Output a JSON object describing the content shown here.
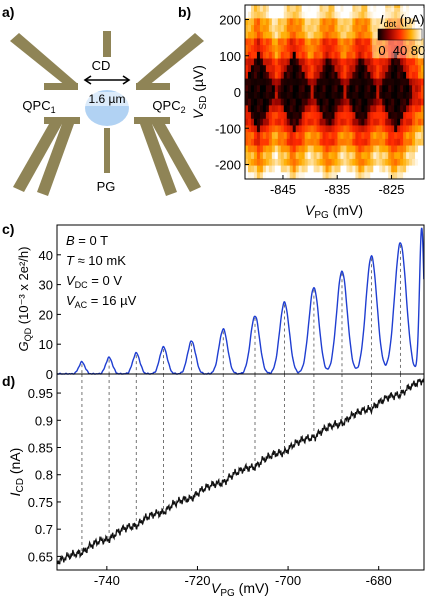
{
  "figure": {
    "panels": {
      "a": {
        "label": "a)",
        "cd_label": "CD",
        "qpc1_label": "QPC",
        "qpc1_sub": "1",
        "qpc2_label": "QPC",
        "qpc2_sub": "2",
        "pg_label": "PG",
        "scale_label": "1.6 µm"
      },
      "b": {
        "label": "b)"
      },
      "c": {
        "label": "c)"
      },
      "d": {
        "label": "d)"
      }
    },
    "colors": {
      "gate": "#8f8456",
      "dot": "#a9cdf2",
      "trace_c": "#1f3ed1",
      "trace_d": "#111111",
      "dash": "#666666"
    }
  },
  "chart_data": [
    {
      "id": "b",
      "type": "heatmap",
      "xlabel": "V",
      "xlabel_sub": "PG",
      "xlabel_unit": " (mV)",
      "ylabel": "V",
      "ylabel_sub": "SD",
      "ylabel_unit": " (µV)",
      "x_ticks": [
        "-845",
        "-835",
        "-825"
      ],
      "x_tick_values": [
        -845,
        -835,
        -825
      ],
      "y_ticks": [
        "200",
        "100",
        "0",
        "-100",
        "-200"
      ],
      "y_tick_values": [
        200,
        100,
        0,
        -100,
        -200
      ],
      "xlim": [
        -852,
        -819
      ],
      "ylim": [
        -240,
        240
      ],
      "colorbar": {
        "title": "I",
        "title_sub": "dot",
        "title_unit": " (pA)",
        "labels": [
          "0",
          "40",
          "80"
        ],
        "range": [
          0,
          80
        ]
      },
      "diamond_centers_mV": [
        -849.5,
        -843.0,
        -836.6,
        -830.5,
        -824.3
      ],
      "diamond_half_height_uV": 105
    },
    {
      "id": "c",
      "type": "line",
      "ylabel": "G",
      "ylabel_sub": "QD",
      "ylabel_unit": " (10⁻³ x 2e²/h)",
      "y_ticks": [
        "0",
        "10",
        "20",
        "30",
        "40"
      ],
      "y_tick_values": [
        0,
        10,
        20,
        30,
        40
      ],
      "ylim": [
        0,
        50
      ],
      "xlim": [
        -751,
        -670
      ],
      "annotations": [
        {
          "text": "B",
          "rest": " = 0 T"
        },
        {
          "text": "T",
          "rest": " ≈ 10 mK"
        },
        {
          "text": "V",
          "sub": "DC",
          "rest": " = 0 V"
        },
        {
          "text": "V",
          "sub": "AC",
          "rest": " = 16 µV"
        }
      ],
      "peaks": [
        {
          "x": -745.5,
          "g": 4
        },
        {
          "x": -739.5,
          "g": 5.5
        },
        {
          "x": -733.5,
          "g": 7
        },
        {
          "x": -727.5,
          "g": 9
        },
        {
          "x": -721.3,
          "g": 11
        },
        {
          "x": -714.3,
          "g": 15
        },
        {
          "x": -707.3,
          "g": 19.5
        },
        {
          "x": -700.8,
          "g": 24
        },
        {
          "x": -694.3,
          "g": 29
        },
        {
          "x": -688.1,
          "g": 34.5
        },
        {
          "x": -681.6,
          "g": 39.5
        },
        {
          "x": -675.2,
          "g": 44
        }
      ],
      "end_rise": {
        "x": -670.5,
        "g": 49
      }
    },
    {
      "id": "d",
      "type": "line",
      "xlabel": "V",
      "xlabel_sub": "PG",
      "xlabel_unit": " (mV)",
      "ylabel": "I",
      "ylabel_sub": "CD",
      "ylabel_unit": " (nA)",
      "x_ticks": [
        "-740",
        "-720",
        "-700",
        "-680"
      ],
      "x_tick_values": [
        -740,
        -720,
        -700,
        -680
      ],
      "y_ticks": [
        "0.65",
        "0.7",
        "0.75",
        "0.8",
        "0.85",
        "0.9",
        "0.95"
      ],
      "y_tick_values": [
        0.65,
        0.7,
        0.75,
        0.8,
        0.85,
        0.9,
        0.95
      ],
      "xlim": [
        -751,
        -670
      ],
      "ylim": [
        0.625,
        0.985
      ],
      "start": {
        "x": -751,
        "y": 0.64
      },
      "end": {
        "x": -670,
        "y": 0.975
      }
    }
  ]
}
